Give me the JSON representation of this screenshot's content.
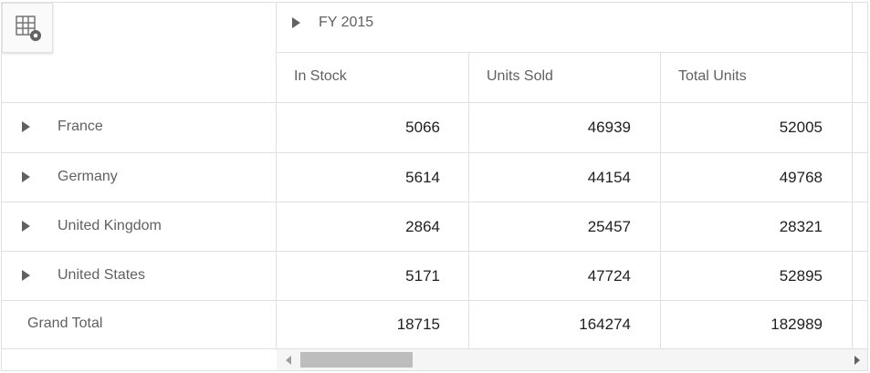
{
  "header": {
    "column_group": "FY 2015",
    "columns": [
      "In Stock",
      "Units Sold",
      "Total Units"
    ]
  },
  "rows": [
    {
      "label": "France",
      "values": [
        "5066",
        "46939",
        "52005"
      ]
    },
    {
      "label": "Germany",
      "values": [
        "5614",
        "44154",
        "49768"
      ]
    },
    {
      "label": "United Kingdom",
      "values": [
        "2864",
        "25457",
        "28321"
      ]
    },
    {
      "label": "United States",
      "values": [
        "5171",
        "47724",
        "52895"
      ]
    }
  ],
  "grand_total": {
    "label": "Grand Total",
    "values": [
      "18715",
      "164274",
      "182989"
    ]
  },
  "icons": {
    "corner": "grid-settings-icon",
    "expand": "triangle-right-icon"
  },
  "colors": {
    "border": "#e0e0e0",
    "header_text": "#616161",
    "value_text": "#212121",
    "scrollbar_thumb": "#bdbdbd"
  }
}
